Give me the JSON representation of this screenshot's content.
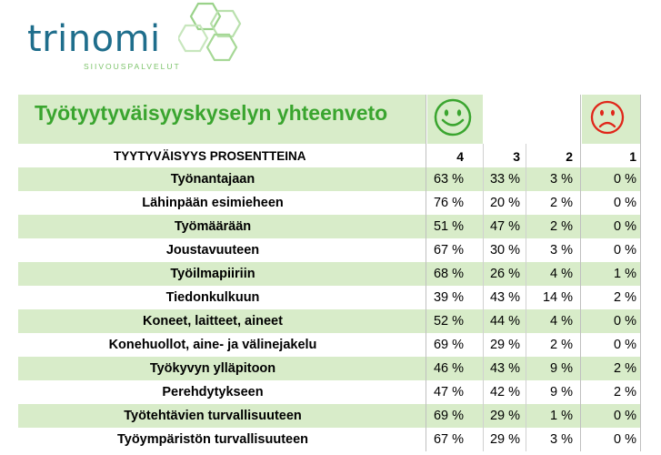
{
  "logo": {
    "name": "trinomi",
    "tagline": "SIIVOUSPALVELUT"
  },
  "title": "Työtyytyväisyyskyselyn yhteenveto",
  "header": {
    "label": "TYYTYVÄISYYS PROSENTTEINA",
    "cols": [
      "4",
      "3",
      "2",
      "1"
    ]
  },
  "icons": {
    "happy": "smiley-icon",
    "sad": "frown-icon"
  },
  "colors": {
    "green": "#3aa52f",
    "red": "#e0261a",
    "band": "#d8ecc9",
    "logo_blue": "#1f6e8c"
  },
  "rows": [
    {
      "label": "Työnantajaan",
      "v": [
        "63 %",
        "33 %",
        "3 %",
        "0 %"
      ]
    },
    {
      "label": "Lähinpään esimieheen",
      "v": [
        "76 %",
        "20 %",
        "2 %",
        "0 %"
      ]
    },
    {
      "label": "Työmäärään",
      "v": [
        "51 %",
        "47 %",
        "2 %",
        "0 %"
      ]
    },
    {
      "label": "Joustavuuteen",
      "v": [
        "67 %",
        "30 %",
        "3 %",
        "0 %"
      ]
    },
    {
      "label": "Työilmapiiriin",
      "v": [
        "68 %",
        "26 %",
        "4 %",
        "1 %"
      ]
    },
    {
      "label": "Tiedonkulkuun",
      "v": [
        "39 %",
        "43 %",
        "14 %",
        "2 %"
      ]
    },
    {
      "label": "Koneet, laitteet, aineet",
      "v": [
        "52 %",
        "44 %",
        "4 %",
        "0 %"
      ]
    },
    {
      "label": "Konehuollot, aine- ja välinejakelu",
      "v": [
        "69 %",
        "29 %",
        "2 %",
        "0 %"
      ]
    },
    {
      "label": "Työkyvyn ylläpitoon",
      "v": [
        "46 %",
        "43 %",
        "9 %",
        "2 %"
      ]
    },
    {
      "label": "Perehdytykseen",
      "v": [
        "47 %",
        "42 %",
        "9 %",
        "2 %"
      ]
    },
    {
      "label": "Työtehtävien turvallisuuteen",
      "v": [
        "69 %",
        "29 %",
        "1 %",
        "0 %"
      ]
    },
    {
      "label": "Työympäristön turvallisuuteen",
      "v": [
        "67 %",
        "29 %",
        "3 %",
        "0 %"
      ]
    }
  ]
}
